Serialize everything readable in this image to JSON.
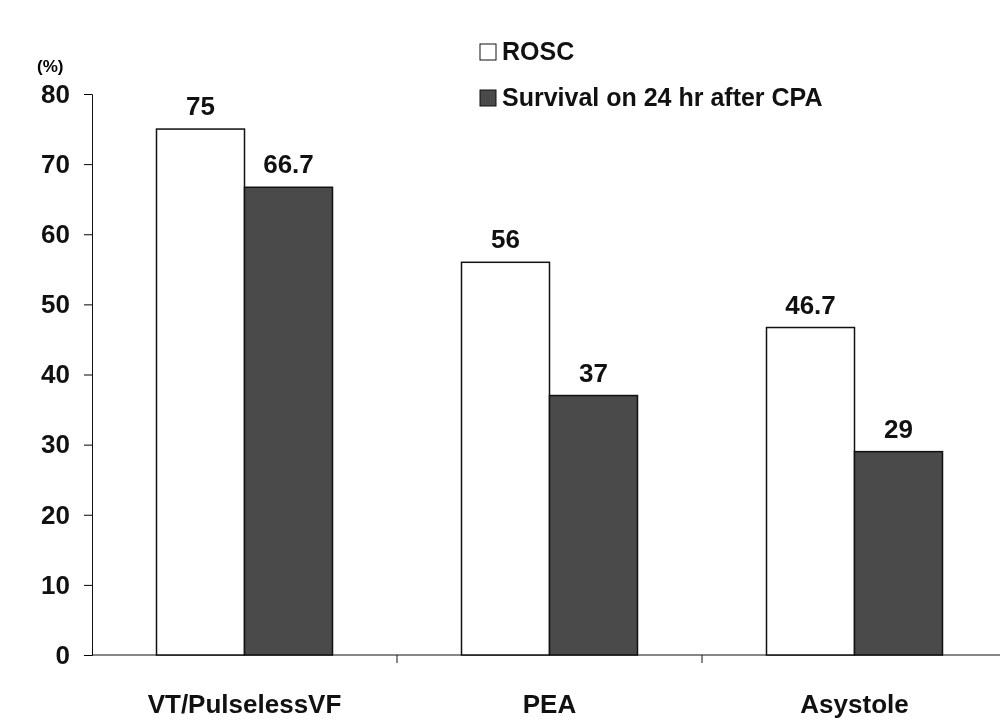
{
  "chart_data": {
    "type": "bar",
    "ylabel": "(%)",
    "categories": [
      "VT/PulselessVF",
      "PEA",
      "Asystole"
    ],
    "series": [
      {
        "name": "ROSC",
        "color": "#ffffff",
        "values": [
          75,
          56,
          46.7
        ]
      },
      {
        "name": "Survival on 24 hr after CPA",
        "color": "#4a4a4a",
        "values": [
          66.7,
          37,
          29
        ]
      }
    ],
    "ylim": [
      0,
      80
    ],
    "yticks": [
      0,
      10,
      20,
      30,
      40,
      50,
      60,
      70,
      80
    ],
    "data_labels": true,
    "legend": "top right",
    "grid": false
  }
}
